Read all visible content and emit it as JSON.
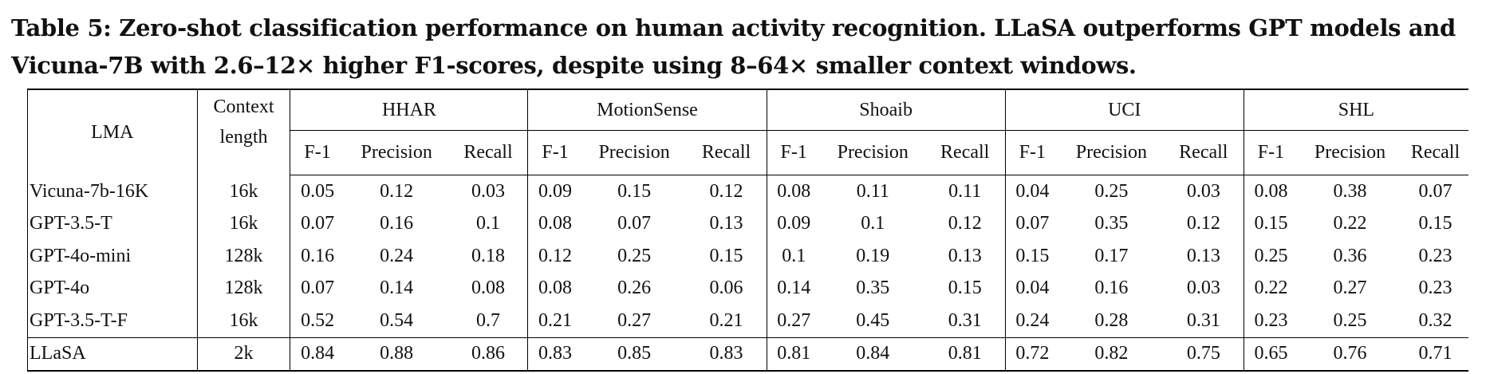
{
  "caption": {
    "line1": "Table 5: Zero-shot classification performance on human activity recognition. LLaSA outperforms GPT models and",
    "line2": "Vicuna-7B with 2.6–12× higher F1-scores, despite using 8–64× smaller context windows."
  },
  "table": {
    "col_lma": "LMA",
    "col_context_line1": "Context",
    "col_context_line2": "length",
    "datasets": [
      "HHAR",
      "MotionSense",
      "Shoaib",
      "UCI",
      "SHL"
    ],
    "metrics": [
      "F-1",
      "Precision",
      "Recall"
    ],
    "rows": [
      {
        "model": "Vicuna-7b-16K",
        "context": "16k",
        "values": [
          "0.05",
          "0.12",
          "0.03",
          "0.09",
          "0.15",
          "0.12",
          "0.08",
          "0.11",
          "0.11",
          "0.04",
          "0.25",
          "0.03",
          "0.08",
          "0.38",
          "0.07"
        ]
      },
      {
        "model": "GPT-3.5-T",
        "context": "16k",
        "values": [
          "0.07",
          "0.16",
          "0.1",
          "0.08",
          "0.07",
          "0.13",
          "0.09",
          "0.1",
          "0.12",
          "0.07",
          "0.35",
          "0.12",
          "0.15",
          "0.22",
          "0.15"
        ]
      },
      {
        "model": "GPT-4o-mini",
        "context": "128k",
        "values": [
          "0.16",
          "0.24",
          "0.18",
          "0.12",
          "0.25",
          "0.15",
          "0.1",
          "0.19",
          "0.13",
          "0.15",
          "0.17",
          "0.13",
          "0.25",
          "0.36",
          "0.23"
        ]
      },
      {
        "model": "GPT-4o",
        "context": "128k",
        "values": [
          "0.07",
          "0.14",
          "0.08",
          "0.08",
          "0.26",
          "0.06",
          "0.14",
          "0.35",
          "0.15",
          "0.04",
          "0.16",
          "0.03",
          "0.22",
          "0.27",
          "0.23"
        ]
      },
      {
        "model": "GPT-3.5-T-F",
        "context": "16k",
        "values": [
          "0.52",
          "0.54",
          "0.7",
          "0.21",
          "0.27",
          "0.21",
          "0.27",
          "0.45",
          "0.31",
          "0.24",
          "0.28",
          "0.31",
          "0.23",
          "0.25",
          "0.32"
        ]
      },
      {
        "model": "LLaSA",
        "context": "2k",
        "values": [
          "0.84",
          "0.88",
          "0.86",
          "0.83",
          "0.85",
          "0.83",
          "0.81",
          "0.84",
          "0.81",
          "0.72",
          "0.82",
          "0.75",
          "0.65",
          "0.76",
          "0.71"
        ],
        "bold": true
      }
    ]
  }
}
